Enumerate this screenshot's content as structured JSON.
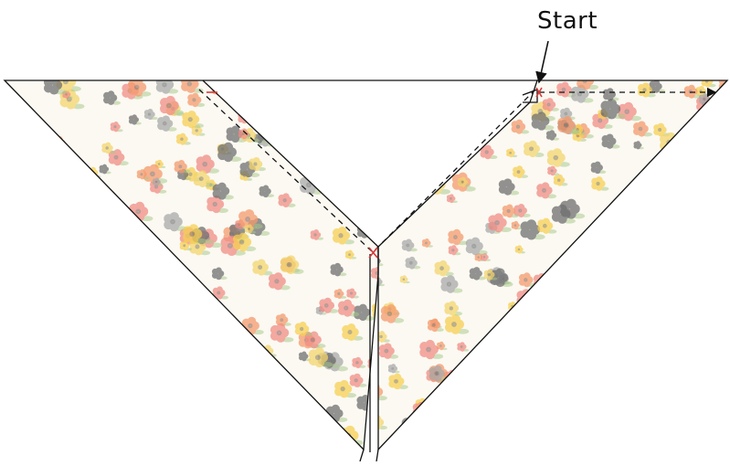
{
  "diagram": {
    "start_label": "Start",
    "colors": {
      "outline": "#111111",
      "marker": "#d63a3a",
      "fabric_base": "#fbf9f2",
      "flower_pink": "#f08c84",
      "flower_orange": "#f59a6c",
      "flower_yellow": "#f7cf52",
      "flower_gray": "#a9a9a9",
      "flower_dark": "#6f6f6f",
      "leaf_green": "#a8c98a",
      "bee_yellow": "#f3d56d"
    }
  }
}
